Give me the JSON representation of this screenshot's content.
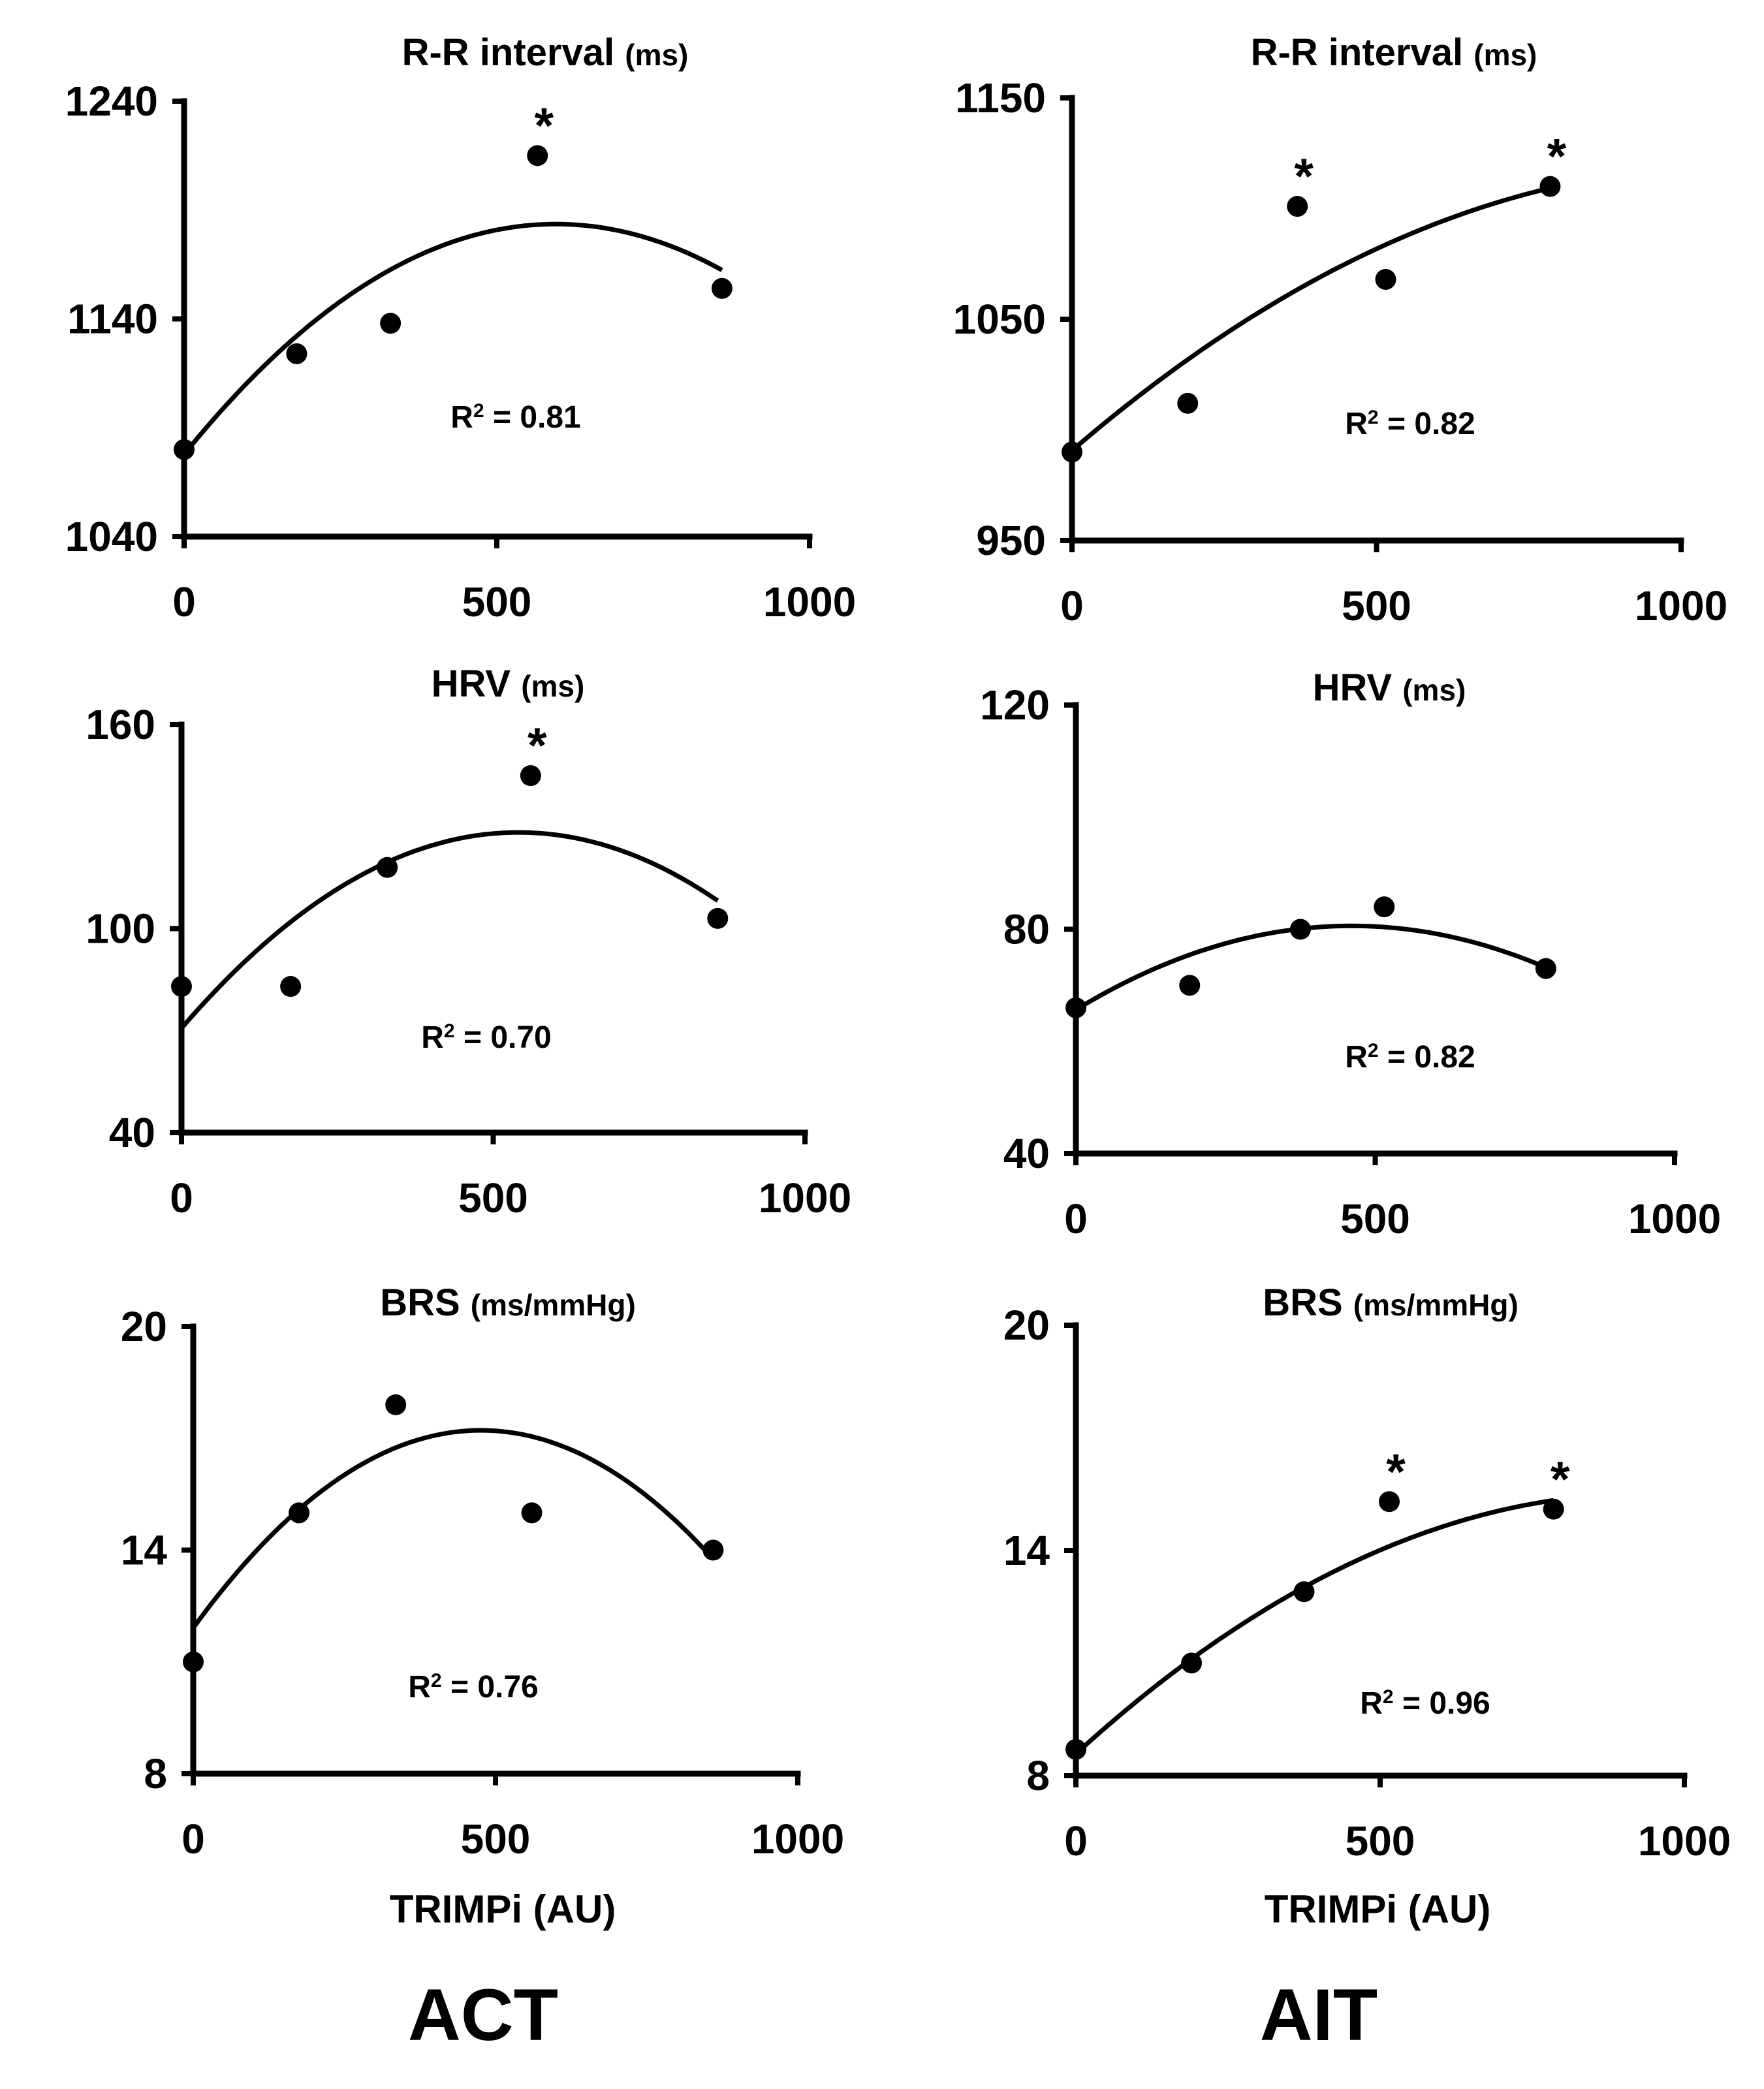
{
  "group_labels": {
    "left": "ACT",
    "right": "AIT"
  },
  "x_axis_label": "TRIMPi (AU)",
  "r2_prefix": "R",
  "r2_sup": "2",
  "chart_data": [
    {
      "type": "scatter",
      "group": "ACT",
      "title": "R-R interval",
      "unit": "(ms)",
      "r2": "= 0.81",
      "x": [
        0,
        180,
        330,
        565,
        860
      ],
      "y": [
        1080,
        1124,
        1138,
        1215,
        1154
      ],
      "significant": [
        false,
        false,
        false,
        true,
        false
      ],
      "xlim": [
        0,
        1000
      ],
      "ylim": [
        1040,
        1240
      ],
      "xticks": [
        0,
        500,
        1000
      ],
      "yticks": [
        1040,
        1140,
        1240
      ],
      "trend": {
        "type": "quadratic",
        "x": [
          0,
          200,
          400,
          600,
          860
        ],
        "y": [
          1078,
          1137,
          1171,
          1185,
          1162
        ]
      }
    },
    {
      "type": "scatter",
      "group": "AIT",
      "title": "R-R interval",
      "unit": "(ms)",
      "r2": "= 0.82",
      "x": [
        0,
        190,
        370,
        515,
        785
      ],
      "y": [
        990,
        1012,
        1101,
        1068,
        1110
      ],
      "significant": [
        false,
        false,
        true,
        false,
        true
      ],
      "xlim": [
        0,
        1000
      ],
      "ylim": [
        950,
        1150
      ],
      "xticks": [
        0,
        500,
        1000
      ],
      "yticks": [
        950,
        1050,
        1150
      ],
      "trend": {
        "type": "quadratic",
        "x": [
          0,
          200,
          400,
          600,
          785
        ],
        "y": [
          990,
          1035,
          1068,
          1092,
          1110
        ]
      }
    },
    {
      "type": "scatter",
      "group": "ACT",
      "title": "HRV",
      "unit": "(ms)",
      "r2": "= 0.70",
      "x": [
        0,
        175,
        330,
        560,
        860
      ],
      "y": [
        83,
        83,
        118,
        145,
        103
      ],
      "significant": [
        false,
        false,
        false,
        true,
        false
      ],
      "xlim": [
        0,
        1000
      ],
      "ylim": [
        40,
        160
      ],
      "xticks": [
        0,
        500,
        1000
      ],
      "yticks": [
        40,
        100,
        160
      ],
      "trend": {
        "type": "quadratic",
        "x": [
          0,
          200,
          400,
          560,
          860
        ],
        "y": [
          71,
          105,
          124,
          129,
          108
        ]
      }
    },
    {
      "type": "scatter",
      "group": "AIT",
      "title": "HRV",
      "unit": "(ms)",
      "r2": "= 0.82",
      "x": [
        0,
        190,
        375,
        515,
        785
      ],
      "y": [
        66,
        70,
        80,
        84,
        73
      ],
      "significant": [
        false,
        false,
        false,
        false,
        false
      ],
      "xlim": [
        0,
        1000
      ],
      "ylim": [
        40,
        120
      ],
      "xticks": [
        0,
        500,
        1000
      ],
      "yticks": [
        40,
        80,
        120
      ],
      "trend": {
        "type": "quadratic",
        "x": [
          0,
          200,
          400,
          500,
          785
        ],
        "y": [
          66,
          75,
          80.5,
          81,
          73
        ]
      }
    },
    {
      "type": "scatter",
      "group": "ACT",
      "title": "BRS",
      "unit": "(ms/mmHg)",
      "r2": "= 0.76",
      "x": [
        0,
        175,
        335,
        560,
        860
      ],
      "y": [
        11,
        15,
        17.9,
        15,
        14
      ],
      "significant": [
        false,
        false,
        false,
        false,
        false
      ],
      "xlim": [
        0,
        1000
      ],
      "ylim": [
        8,
        20
      ],
      "xticks": [
        0,
        500,
        1000
      ],
      "yticks": [
        8,
        14,
        20
      ],
      "trend": {
        "type": "quadratic",
        "x": [
          0,
          200,
          400,
          480,
          860
        ],
        "y": [
          11.8,
          15.7,
          17.0,
          17.1,
          13.8
        ]
      }
    },
    {
      "type": "scatter",
      "group": "AIT",
      "title": "BRS",
      "unit": "(ms/mmHg)",
      "r2": "= 0.96",
      "x": [
        0,
        190,
        375,
        515,
        785
      ],
      "y": [
        8.7,
        11,
        12.9,
        15.3,
        15.1
      ],
      "significant": [
        false,
        false,
        false,
        true,
        true
      ],
      "xlim": [
        0,
        1000
      ],
      "ylim": [
        8,
        20
      ],
      "xticks": [
        0,
        500,
        1000
      ],
      "yticks": [
        8,
        14,
        20
      ],
      "trend": {
        "type": "quadratic",
        "x": [
          0,
          200,
          400,
          600,
          785
        ],
        "y": [
          8.6,
          11.2,
          13.2,
          14.7,
          15.3
        ]
      }
    }
  ]
}
